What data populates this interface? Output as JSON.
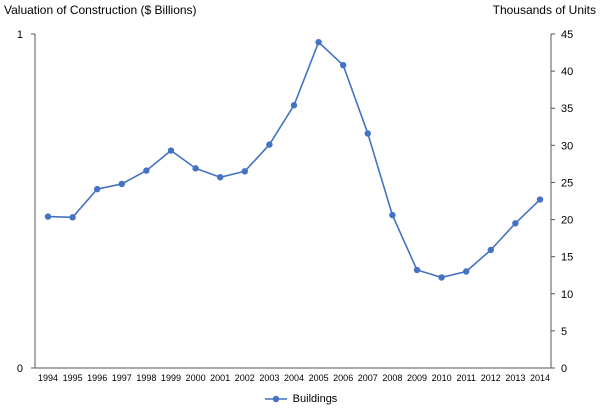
{
  "chart_data": {
    "type": "line",
    "left_axis_title": "Valuation of Construction ($ Billions)",
    "right_axis_title": "Thousands of Units",
    "categories": [
      "1994",
      "1995",
      "1996",
      "1997",
      "1998",
      "1999",
      "2000",
      "2001",
      "2002",
      "2003",
      "2004",
      "2005",
      "2006",
      "2007",
      "2008",
      "2009",
      "2010",
      "2011",
      "2012",
      "2013",
      "2014"
    ],
    "series": [
      {
        "name": "Buildings",
        "axis": "right",
        "color": "#4472c4",
        "values": [
          20.4,
          20.3,
          24.1,
          24.8,
          26.6,
          29.3,
          26.9,
          25.7,
          26.5,
          30.1,
          35.4,
          43.9,
          40.8,
          31.6,
          20.6,
          13.2,
          12.2,
          13.0,
          15.9,
          19.5,
          22.7
        ]
      }
    ],
    "left_axis": {
      "ticks": [
        "0",
        "1"
      ],
      "ylim": [
        0,
        1
      ]
    },
    "right_axis": {
      "ticks": [
        "0",
        "5",
        "10",
        "15",
        "20",
        "25",
        "30",
        "35",
        "40",
        "45"
      ],
      "ylim": [
        0,
        45
      ]
    },
    "legend_position": "bottom-center",
    "grid": false
  }
}
